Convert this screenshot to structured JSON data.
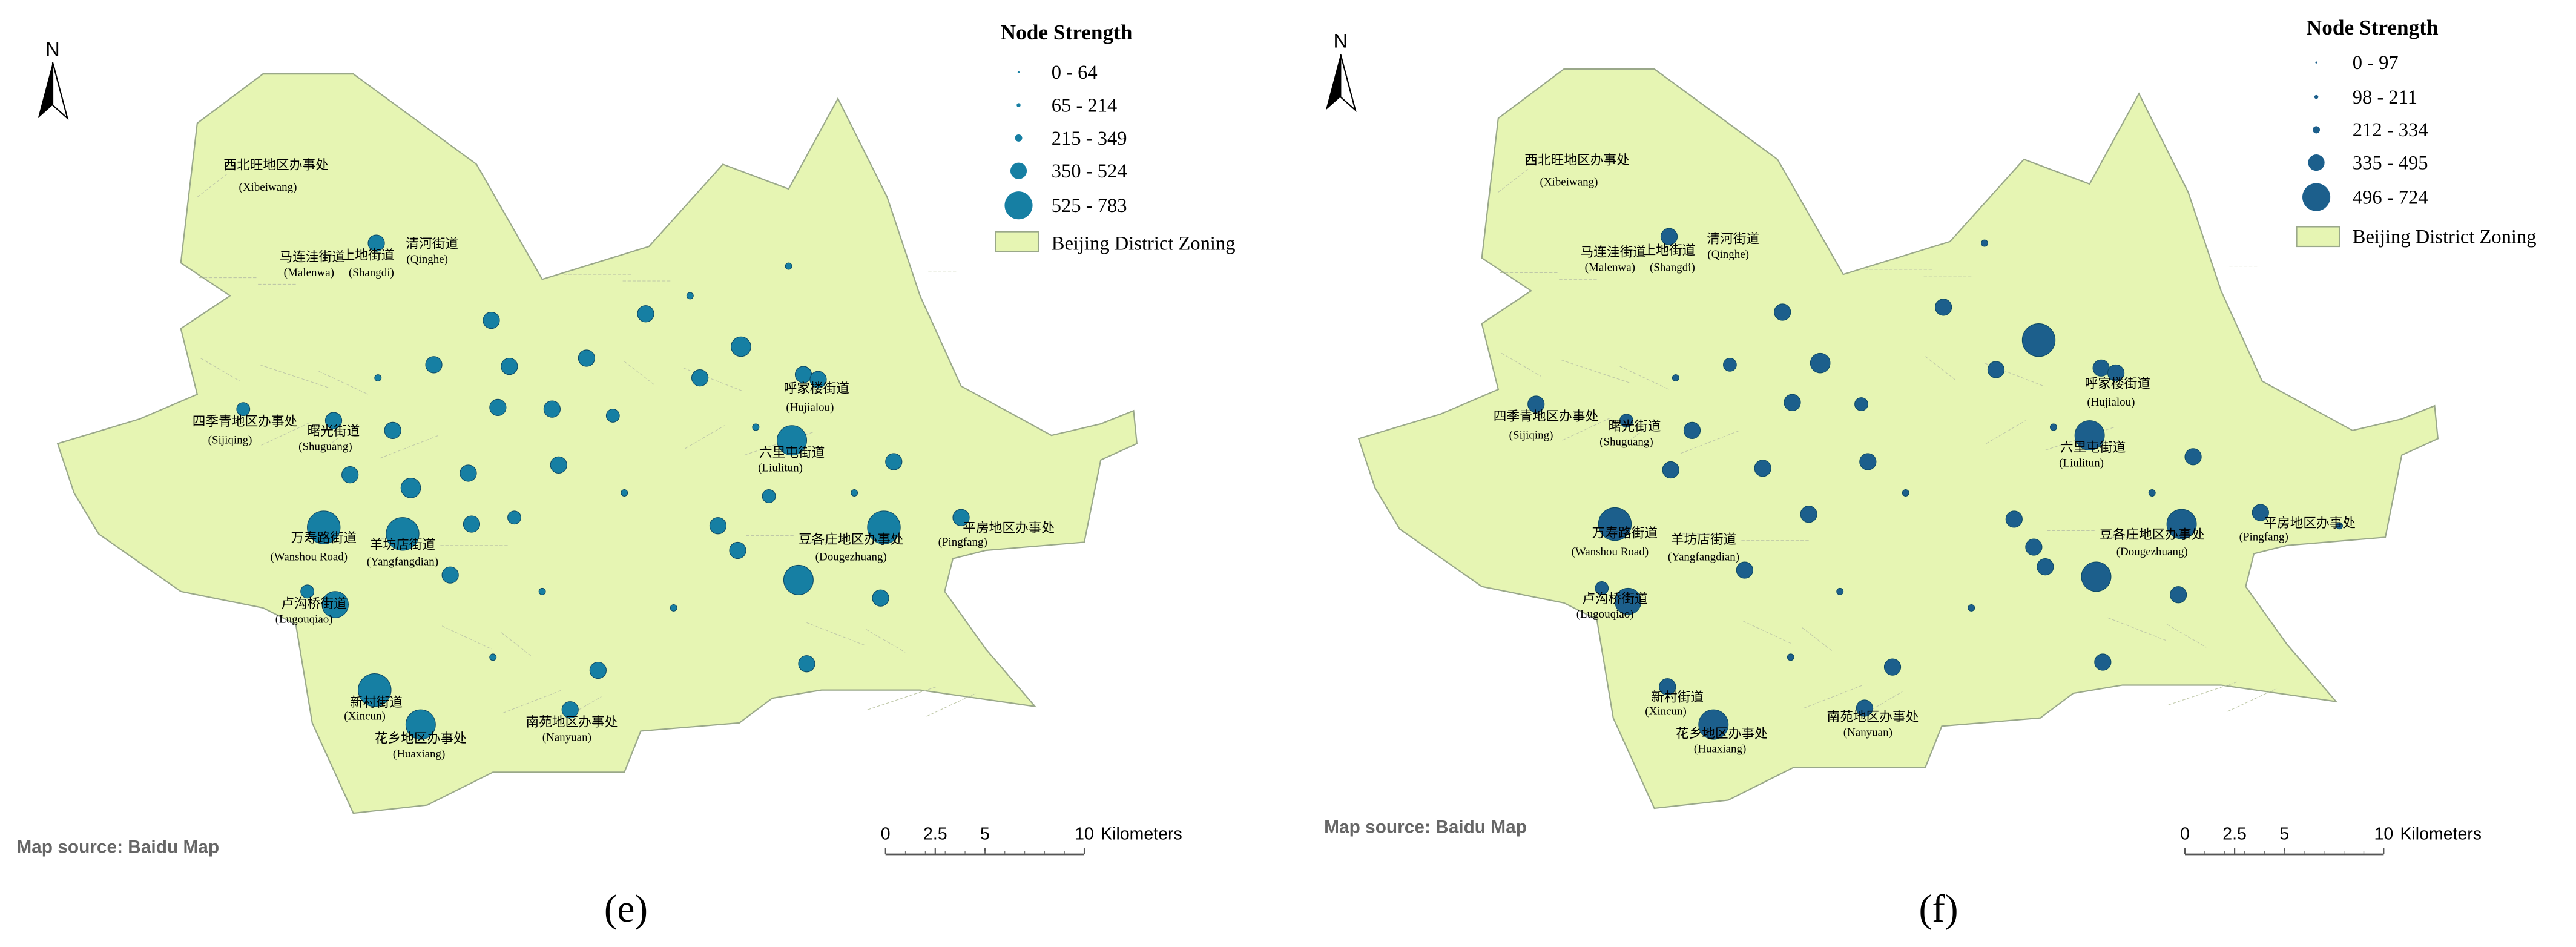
{
  "panels": [
    {
      "label": "(e)",
      "north": "N",
      "legend": {
        "title": "Node Strength",
        "items": [
          "0 - 64",
          "65 - 214",
          "215 - 349",
          "350 - 524",
          "525 - 783"
        ],
        "zoning": "Beijing District Zoning"
      },
      "places": [
        {
          "name": "西北旺地区办事处",
          "pinyin": "(Xibeiwang)"
        },
        {
          "name": "马连洼街道",
          "pinyin": "(Malenwa)"
        },
        {
          "name": "上地街道",
          "pinyin": "(Shangdi)"
        },
        {
          "name": "清河街道",
          "pinyin": "(Qinghe)"
        },
        {
          "name": "四季青地区办事处",
          "pinyin": "(Sijiqing)"
        },
        {
          "name": "曙光街道",
          "pinyin": "(Shuguang)"
        },
        {
          "name": "万寿路街道",
          "pinyin": "(Wanshou Road)"
        },
        {
          "name": "羊坊店街道",
          "pinyin": "(Yangfangdian)"
        },
        {
          "name": "卢沟桥街道",
          "pinyin": "(Lugouqiao)"
        },
        {
          "name": "新村街道",
          "pinyin": "(Xincun)"
        },
        {
          "name": "花乡地区办事处",
          "pinyin": "(Huaxiang)"
        },
        {
          "name": "南苑地区办事处",
          "pinyin": "(Nanyuan)"
        },
        {
          "name": "呼家楼街道",
          "pinyin": "(Hujialou)"
        },
        {
          "name": "六里屯街道",
          "pinyin": "(Liulitun)"
        },
        {
          "name": "豆各庄地区办事处",
          "pinyin": "(Dougezhuang)"
        },
        {
          "name": "平房地区办事处",
          "pinyin": "(Pingfang)"
        }
      ],
      "source": "Map source: Baidu Map",
      "scale": {
        "ticks": [
          0,
          2.5,
          5,
          10
        ],
        "unit": "Kilometers"
      }
    },
    {
      "label": "(f)",
      "north": "N",
      "legend": {
        "title": "Node Strength",
        "items": [
          "0 - 97",
          "98 - 211",
          "212 - 334",
          "335 - 495",
          "496 - 724"
        ],
        "zoning": "Beijing District Zoning"
      },
      "places": [
        {
          "name": "西北旺地区办事处",
          "pinyin": "(Xibeiwang)"
        },
        {
          "name": "马连洼街道",
          "pinyin": "(Malenwa)"
        },
        {
          "name": "上地街道",
          "pinyin": "(Shangdi)"
        },
        {
          "name": "清河街道",
          "pinyin": "(Qinghe)"
        },
        {
          "name": "四季青地区办事处",
          "pinyin": "(Sijiqing)"
        },
        {
          "name": "曙光街道",
          "pinyin": "(Shuguang)"
        },
        {
          "name": "万寿路街道",
          "pinyin": "(Wanshou Road)"
        },
        {
          "name": "羊坊店街道",
          "pinyin": "(Yangfangdian)"
        },
        {
          "name": "卢沟桥街道",
          "pinyin": "(Lugouqiao)"
        },
        {
          "name": "新村街道",
          "pinyin": "(Xincun)"
        },
        {
          "name": "花乡地区办事处",
          "pinyin": "(Huaxiang)"
        },
        {
          "name": "南苑地区办事处",
          "pinyin": "(Nanyuan)"
        },
        {
          "name": "呼家楼街道",
          "pinyin": "(Hujialou)"
        },
        {
          "name": "六里屯街道",
          "pinyin": "(Liulitun)"
        },
        {
          "name": "豆各庄地区办事处",
          "pinyin": "(Dougezhuang)"
        },
        {
          "name": "平房地区办事处",
          "pinyin": "(Pingfang)"
        }
      ],
      "source": "Map source: Baidu Map",
      "scale": {
        "ticks": [
          0,
          2.5,
          5,
          10
        ],
        "unit": "Kilometers"
      }
    }
  ]
}
